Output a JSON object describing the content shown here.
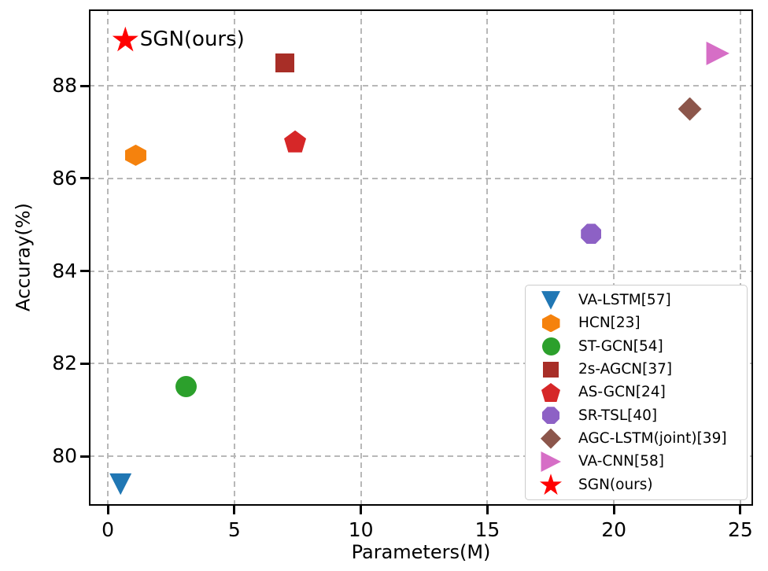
{
  "chart_data": {
    "type": "scatter",
    "title": "",
    "xlabel": "Parameters(M)",
    "ylabel": "Accuray(%)",
    "xlim": [
      -0.75,
      25.5
    ],
    "ylim": [
      78.93,
      89.65
    ],
    "xticks": [
      0,
      5,
      10,
      15,
      20,
      25
    ],
    "yticks": [
      80,
      82,
      84,
      86,
      88
    ],
    "grid": "dashed",
    "legend_position": "lower right",
    "series": [
      {
        "name": "VA-LSTM[57]",
        "x": 0.5,
        "y": 79.4,
        "marker": "triangle-down",
        "color": "#2077b4",
        "size": 28
      },
      {
        "name": "HCN[23]",
        "x": 1.1,
        "y": 86.5,
        "marker": "hexagon",
        "color": "#f5820d",
        "size": 27
      },
      {
        "name": "ST-GCN[54]",
        "x": 3.1,
        "y": 81.5,
        "marker": "circle",
        "color": "#2ca02c",
        "size": 27
      },
      {
        "name": "2s-AGCN[37]",
        "x": 7.0,
        "y": 88.5,
        "marker": "square",
        "color": "#a82e27",
        "size": 24
      },
      {
        "name": "AS-GCN[24]",
        "x": 7.4,
        "y": 86.8,
        "marker": "pentagon",
        "color": "#d62728",
        "size": 28
      },
      {
        "name": "SR-TSL[40]",
        "x": 19.1,
        "y": 84.8,
        "marker": "octagon",
        "color": "#8d61c5",
        "size": 26
      },
      {
        "name": "AGC-LSTM(joint)[39]",
        "x": 23.0,
        "y": 87.5,
        "marker": "diamond",
        "color": "#8c564b",
        "size": 30
      },
      {
        "name": "VA-CNN[58]",
        "x": 24.1,
        "y": 88.7,
        "marker": "triangle-right",
        "color": "#d66ec6",
        "size": 30
      },
      {
        "name": "SGN(ours)",
        "x": 0.69,
        "y": 89.0,
        "marker": "star",
        "color": "#ff0000",
        "size": 33,
        "annotation": "SGN(ours)"
      }
    ]
  }
}
